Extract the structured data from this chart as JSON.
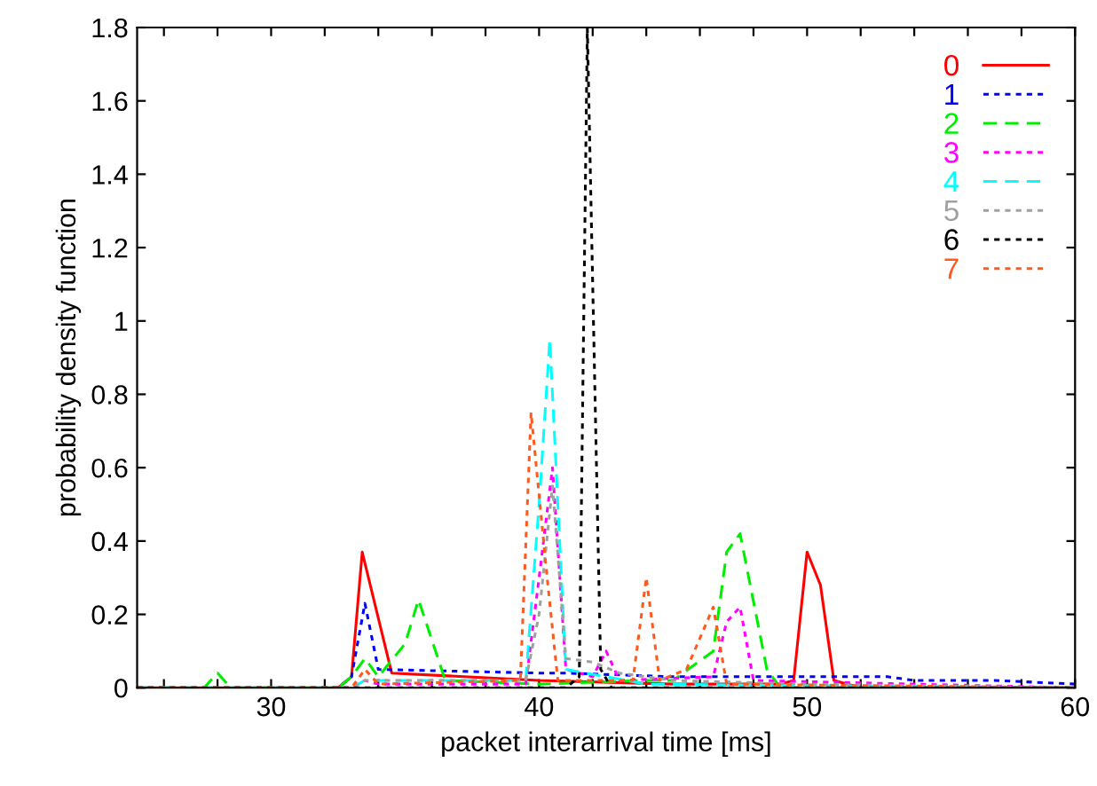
{
  "chart_data": {
    "type": "line",
    "xlabel": "packet interarrival time [ms]",
    "ylabel": "probability density function",
    "xlim": [
      25,
      60
    ],
    "ylim": [
      0,
      1.8
    ],
    "xticks": [
      {
        "value": 26,
        "label": null
      },
      {
        "value": 28,
        "label": null
      },
      30,
      {
        "value": 32,
        "label": null
      },
      {
        "value": 34,
        "label": null
      },
      {
        "value": 36,
        "label": null
      },
      {
        "value": 38,
        "label": null
      },
      40,
      {
        "value": 42,
        "label": null
      },
      {
        "value": 44,
        "label": null
      },
      {
        "value": 46,
        "label": null
      },
      {
        "value": 48,
        "label": null
      },
      50,
      {
        "value": 52,
        "label": null
      },
      {
        "value": 54,
        "label": null
      },
      {
        "value": 56,
        "label": null
      },
      {
        "value": 58,
        "label": null
      },
      60
    ],
    "yticks": [
      0,
      {
        "value": 0.2,
        "label": "0.2"
      },
      {
        "value": 0.4,
        "label": "0.4"
      },
      {
        "value": 0.6,
        "label": "0.6"
      },
      {
        "value": 0.8,
        "label": "0.8"
      },
      1,
      {
        "value": 1.2,
        "label": "1.2"
      },
      {
        "value": 1.4,
        "label": "1.4"
      },
      {
        "value": 1.6,
        "label": "1.6"
      },
      {
        "value": 1.8,
        "label": "1.8"
      }
    ],
    "grid": false,
    "legend": "top right",
    "marker": "none",
    "series": [
      {
        "name": "0",
        "color": "#ff0000",
        "line_style": "solid",
        "x": [
          25,
          32.5,
          33,
          33.4,
          34.5,
          40,
          45,
          49,
          49.5,
          50,
          50.5,
          51,
          52,
          60
        ],
        "values": [
          0,
          0,
          0.03,
          0.37,
          0.04,
          0.02,
          0.01,
          0.01,
          0.02,
          0.37,
          0.28,
          0.02,
          0,
          0
        ]
      },
      {
        "name": "1",
        "color": "#0000ff",
        "line_style": "dotted",
        "x": [
          25,
          32.5,
          33,
          33.5,
          34,
          40,
          41,
          45,
          50,
          53,
          54,
          57,
          60
        ],
        "values": [
          0,
          0,
          0.03,
          0.23,
          0.05,
          0.04,
          0.04,
          0.03,
          0.03,
          0.03,
          0.02,
          0.02,
          0.01
        ]
      },
      {
        "name": "2",
        "color": "#00ee00",
        "line_style": "dashed",
        "x": [
          25,
          27.5,
          28,
          28.5,
          32.5,
          33,
          33.5,
          34,
          35,
          35.5,
          36.5,
          40,
          44,
          45,
          46.5,
          47,
          47.5,
          48.5,
          49,
          60
        ],
        "values": [
          0,
          0,
          0.04,
          0,
          0,
          0.03,
          0.08,
          0.03,
          0.12,
          0.24,
          0.02,
          0.01,
          0.02,
          0.02,
          0.1,
          0.37,
          0.42,
          0.05,
          0,
          0
        ]
      },
      {
        "name": "3",
        "color": "#ff00ff",
        "line_style": "dotted",
        "x": [
          25,
          33,
          33.5,
          34,
          39.5,
          40,
          40.5,
          41,
          42,
          42.5,
          43,
          46.5,
          47,
          47.5,
          48,
          60
        ],
        "values": [
          0,
          0,
          0.02,
          0.01,
          0.01,
          0.3,
          0.6,
          0.05,
          0.03,
          0.1,
          0.02,
          0.03,
          0.18,
          0.22,
          0.02,
          0
        ]
      },
      {
        "name": "4",
        "color": "#00ffff",
        "line_style": "dashed",
        "x": [
          25,
          33,
          33.5,
          39.5,
          40,
          40.4,
          41,
          44,
          60
        ],
        "values": [
          0,
          0,
          0.02,
          0.02,
          0.5,
          0.95,
          0.05,
          0.01,
          0
        ]
      },
      {
        "name": "5",
        "color": "#a0a0a0",
        "line_style": "dotted",
        "x": [
          25,
          33,
          33.5,
          39.5,
          40,
          40.5,
          41,
          42,
          43,
          45,
          50,
          60
        ],
        "values": [
          0,
          0,
          0.02,
          0.02,
          0.2,
          0.55,
          0.08,
          0.07,
          0.04,
          0.02,
          0.01,
          0
        ]
      },
      {
        "name": "6",
        "color": "#000000",
        "line_style": "dotted",
        "x": [
          25,
          41,
          41.5,
          41.8,
          42.3,
          42.7,
          60
        ],
        "values": [
          0,
          0,
          0.03,
          1.8,
          0.05,
          0,
          0
        ]
      },
      {
        "name": "7",
        "color": "#ff5a1e",
        "line_style": "dotted",
        "x": [
          25,
          33,
          33.5,
          34,
          39.3,
          39.7,
          40.3,
          40.7,
          43.5,
          44,
          44.5,
          45.5,
          46.5,
          47,
          60
        ],
        "values": [
          0,
          0,
          0.05,
          0.01,
          0.02,
          0.75,
          0.3,
          0.02,
          0.02,
          0.3,
          0.02,
          0.05,
          0.22,
          0.01,
          0
        ]
      }
    ]
  }
}
